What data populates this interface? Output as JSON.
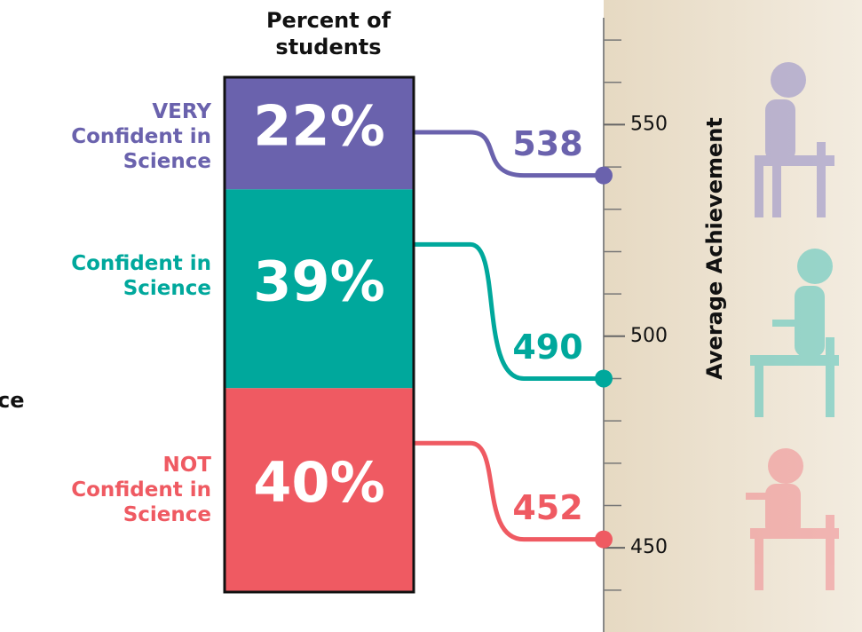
{
  "chart_data": {
    "type": "stacked-bar-achievement",
    "title": "Percent of students",
    "categories": [
      "VERY Confident in Science",
      "Confident in Science",
      "NOT Confident in Science"
    ],
    "colors": [
      "#6a62ad",
      "#00a89c",
      "#ef5a62"
    ],
    "values": [
      22,
      39,
      40
    ],
    "value_labels": [
      "22%",
      "39%",
      "40%"
    ],
    "achievement": [
      538,
      490,
      452
    ],
    "ylabel": "Average Achievement",
    "ylim": [
      432,
      574
    ],
    "yticks": [
      450,
      500,
      550
    ],
    "minor_yticks": [
      440,
      460,
      470,
      480,
      490,
      510,
      520,
      530,
      540,
      560,
      570
    ],
    "annotation": "ce"
  }
}
